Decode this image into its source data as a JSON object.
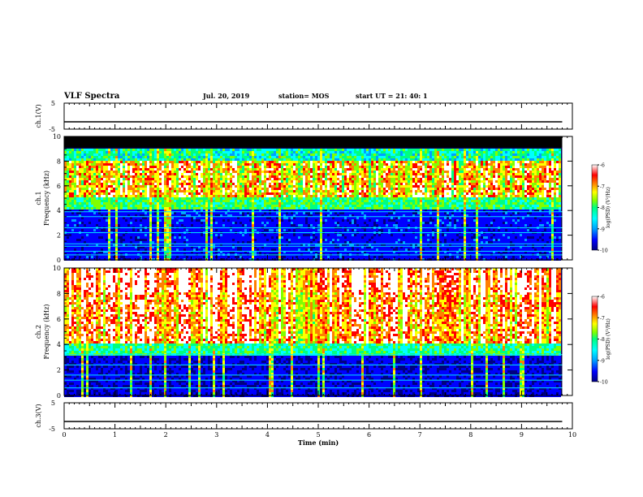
{
  "header": {
    "title": "VLF Spectra",
    "date": "Jul. 20, 2019",
    "station": "station= MOS",
    "start": "start UT =  21: 40: 1"
  },
  "colors": {
    "spectrum": [
      "#000080",
      "#0000ff",
      "#00a0ff",
      "#00ffff",
      "#00ff80",
      "#80ff00",
      "#ffff00",
      "#ff8000",
      "#ff0000",
      "#ffffff"
    ],
    "line_color": "#00e5ff",
    "background_fill": "#000000"
  },
  "chart_data": [
    {
      "type": "line",
      "name": "ch1-waveform",
      "ylabel": "ch.1(V)",
      "ylim": [
        -5,
        5
      ],
      "yticks": [
        "5",
        "-5"
      ],
      "x": [
        0,
        9.8
      ],
      "y": [
        -2.2,
        -2.2
      ]
    },
    {
      "type": "heatmap",
      "name": "ch1-spectrogram",
      "ylabel": "ch.1\nFrequency (kHz)",
      "ylim": [
        0,
        10
      ],
      "xlim": [
        0,
        10
      ],
      "xdata_end": 9.8,
      "yticks": [
        "0",
        "2",
        "4",
        "6",
        "8",
        "10"
      ],
      "dark_band_top_khz": [
        9.1,
        10
      ],
      "noise_band_khz": [
        5.2,
        8.2
      ],
      "cyan_lines_khz": [
        0.4,
        0.7,
        1.1,
        1.3,
        2.2,
        2.6,
        3.5,
        3.9
      ],
      "colorbar": {
        "label": "log(PSD) (V²/Hz)",
        "ticks": [
          "-6",
          "-7",
          "-8",
          "-9",
          "-10"
        ],
        "range": [
          -10,
          -6
        ]
      }
    },
    {
      "type": "heatmap",
      "name": "ch2-spectrogram",
      "ylabel": "ch.2\nFrequency (kHz)",
      "ylim": [
        0,
        10
      ],
      "xlim": [
        0,
        10
      ],
      "xdata_end": 9.8,
      "yticks": [
        "0",
        "2",
        "4",
        "6",
        "8",
        "10"
      ],
      "noise_band_khz": [
        4.2,
        10
      ],
      "cyan_lines_khz": [
        0.6,
        1.2,
        1.6,
        2.4,
        3.2
      ],
      "colorbar": {
        "label": "log(PSD) (V²/Hz)",
        "ticks": [
          "-6",
          "-7",
          "-8",
          "-9",
          "-10"
        ],
        "range": [
          -10,
          -6
        ]
      }
    },
    {
      "type": "line",
      "name": "ch3-waveform",
      "ylabel": "ch.3(V)",
      "ylim": [
        -5,
        5
      ],
      "yticks": [
        "5",
        "-5"
      ],
      "x": [
        0,
        9.8
      ],
      "y": [
        -2.2,
        -2.2
      ]
    },
    {
      "type": "axis",
      "name": "time-axis",
      "xlabel": "Time (min)",
      "xlim": [
        0,
        10
      ],
      "xticks": [
        "0",
        "1",
        "2",
        "3",
        "4",
        "5",
        "6",
        "7",
        "8",
        "9",
        "10"
      ]
    }
  ]
}
